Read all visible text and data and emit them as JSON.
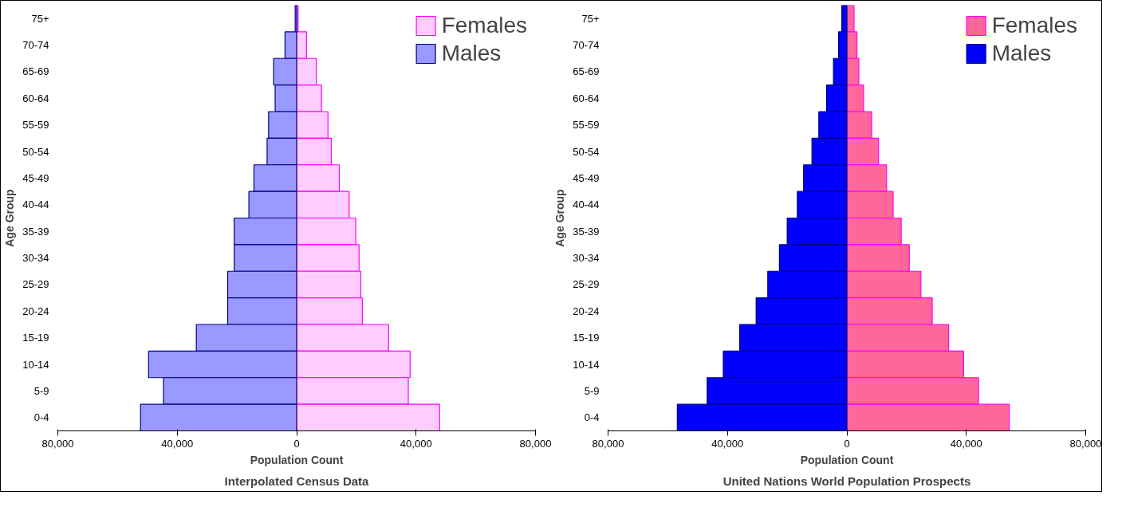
{
  "chart_data": [
    {
      "type": "bar",
      "orientation": "horizontal",
      "stacked": true,
      "title": "Interpolated Census Data",
      "xlabel": "Population Count",
      "ylabel": "Age Group",
      "legend": "top right",
      "categories": [
        "75+",
        "70-74",
        "65-69",
        "60-64",
        "55-59",
        "50-54",
        "45-49",
        "40-44",
        "35-39",
        "30-34",
        "25-29",
        "20-24",
        "15-19",
        "10-14",
        "5-9",
        "0-4"
      ],
      "series": [
        {
          "name": "Females",
          "color": "#ffccff",
          "values": [
            500,
            3300,
            6600,
            8300,
            10500,
            11600,
            14300,
            17600,
            19800,
            20900,
            21500,
            22000,
            30800,
            38000,
            37400,
            47900
          ]
        },
        {
          "name": "Males",
          "color": "#9999ff",
          "values": [
            -500,
            -3900,
            -7700,
            -7200,
            -9400,
            -9900,
            -14300,
            -16000,
            -20900,
            -20900,
            -23100,
            -23100,
            -33600,
            -49600,
            -44600,
            -52300
          ]
        }
      ],
      "xlim": [
        -80000,
        80000
      ],
      "xticks": [
        {
          "value": -80000,
          "label": "80,000"
        },
        {
          "value": -40000,
          "label": "40,000"
        },
        0,
        {
          "value": 40000,
          "label": "40,000"
        },
        {
          "value": 80000,
          "label": "80,000"
        }
      ]
    },
    {
      "type": "bar",
      "orientation": "horizontal",
      "stacked": true,
      "title": "United Nations World Population Prospects",
      "xlabel": "Population Count",
      "ylabel": "Age Group",
      "legend": "top right",
      "categories": [
        "75+",
        "70-74",
        "65-69",
        "60-64",
        "55-59",
        "50-54",
        "45-49",
        "40-44",
        "35-39",
        "30-34",
        "25-29",
        "20-24",
        "15-19",
        "10-14",
        "5-9",
        "0-4"
      ],
      "series": [
        {
          "name": "Females",
          "color": "#ff6699",
          "values": [
            2400,
            3400,
            4000,
            5600,
            8300,
            10600,
            13300,
            15500,
            18200,
            20900,
            24800,
            28600,
            34100,
            39100,
            44100,
            54400
          ]
        },
        {
          "name": "Males",
          "color": "#0000ff",
          "values": [
            -1700,
            -2800,
            -4500,
            -6800,
            -9400,
            -11700,
            -14500,
            -16600,
            -20000,
            -22600,
            -26500,
            -30400,
            -35900,
            -41400,
            -46800,
            -56800
          ]
        }
      ],
      "xlim": [
        -80000,
        80000
      ],
      "xticks": [
        {
          "value": -80000,
          "label": "80,000"
        },
        {
          "value": -40000,
          "label": "40,000"
        },
        0,
        {
          "value": 40000,
          "label": "40,000"
        },
        {
          "value": 80000,
          "label": "80,000"
        }
      ]
    }
  ]
}
